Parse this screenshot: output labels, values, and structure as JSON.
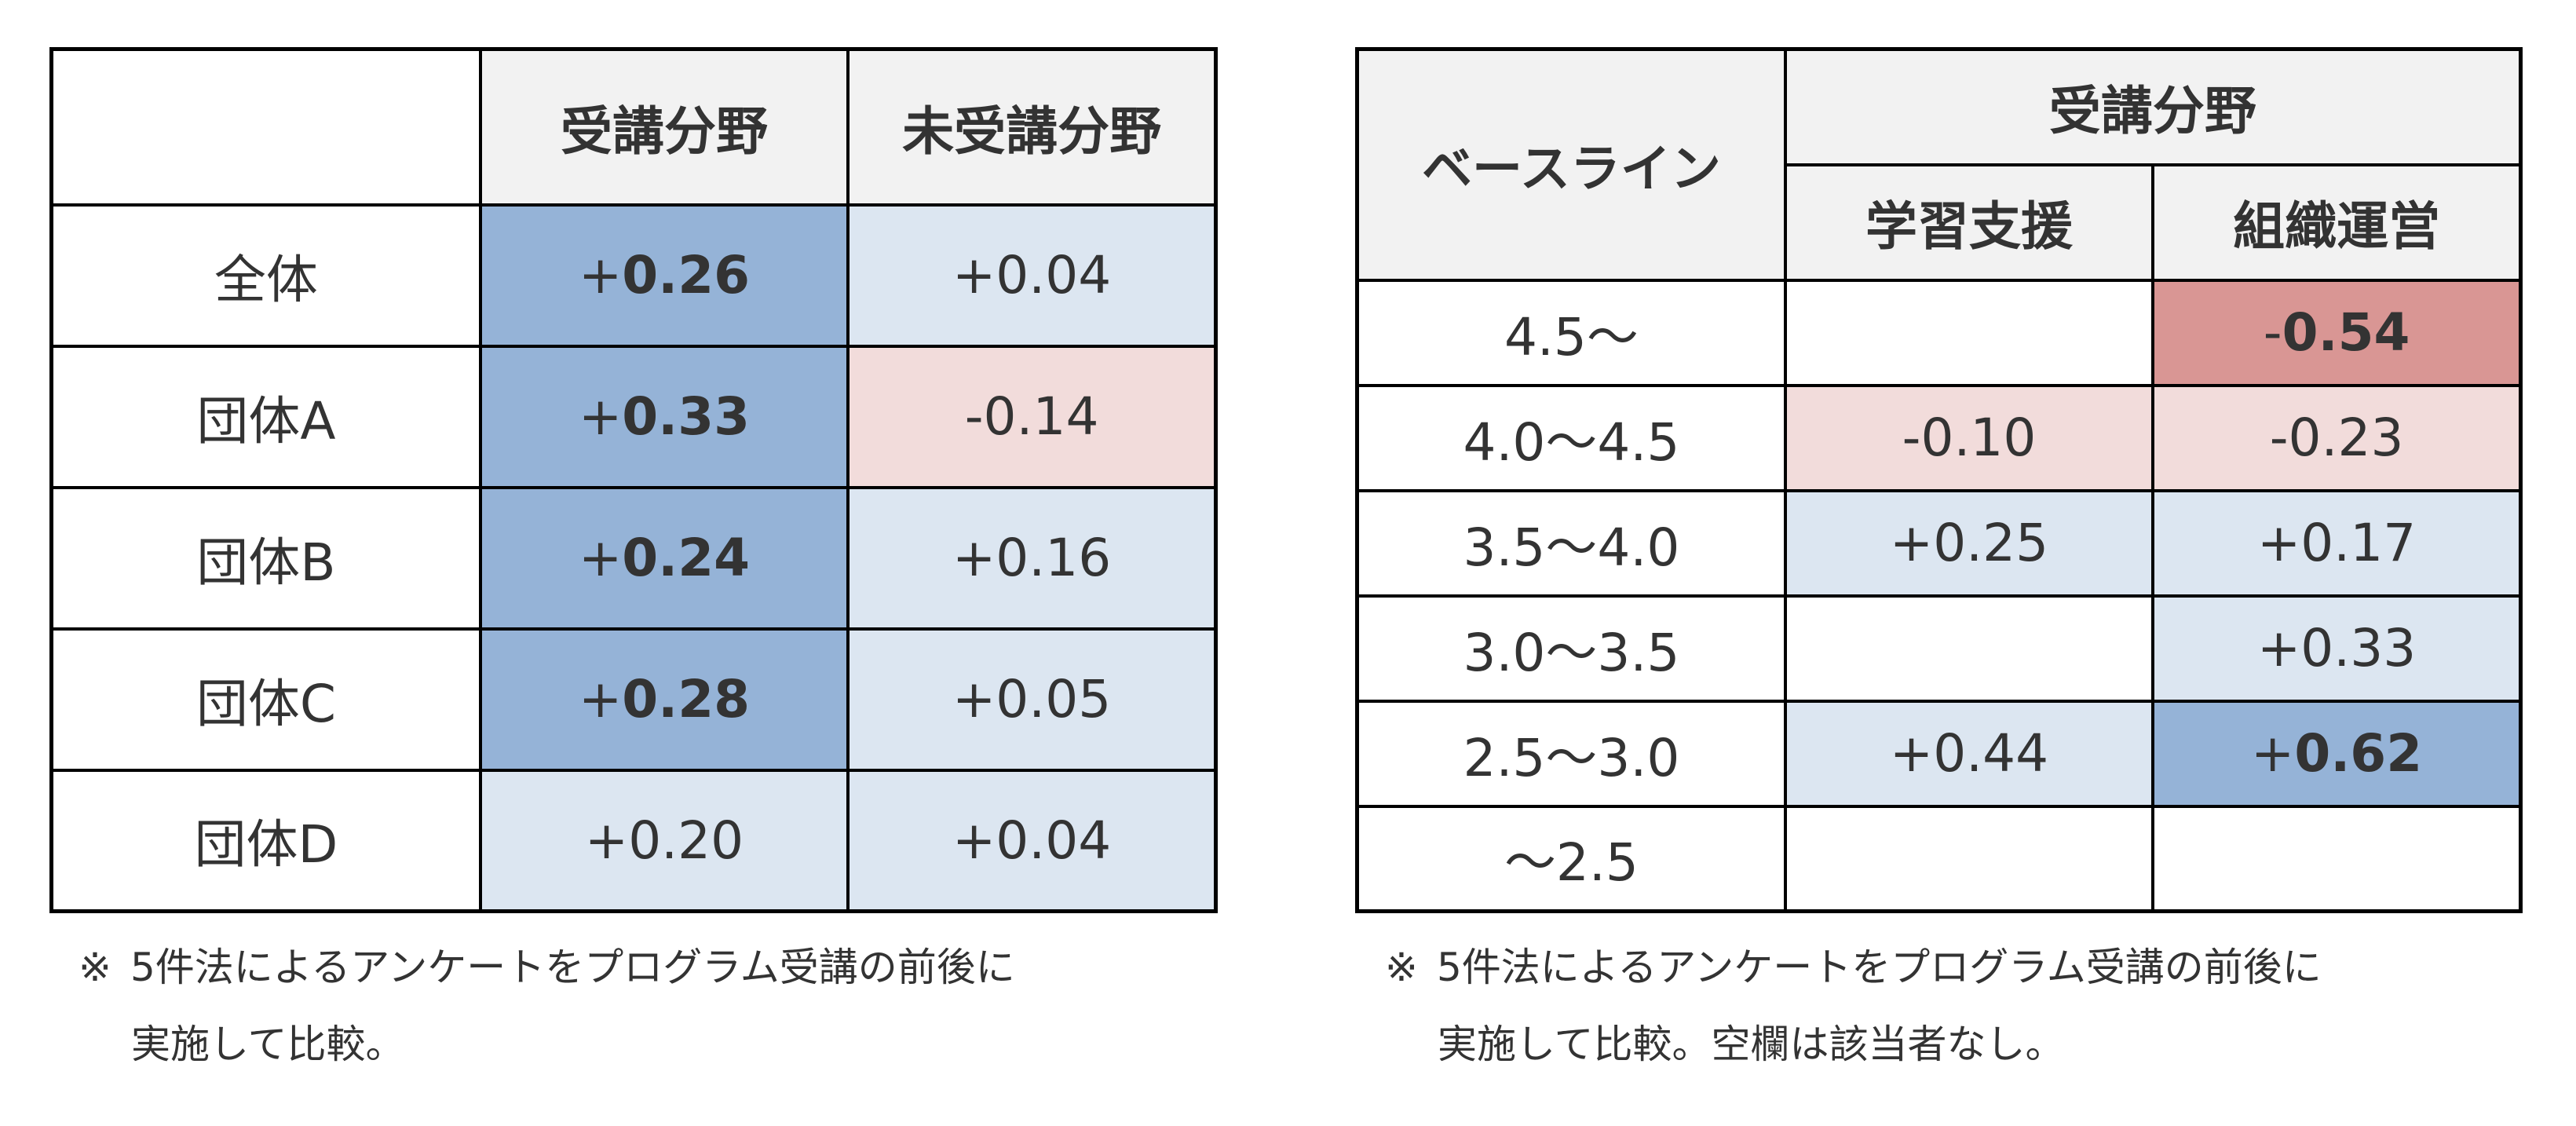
{
  "colors": {
    "header_bg": "#F2F2F2",
    "strong_positive": "#95B3D7",
    "weak_positive": "#DCE6F1",
    "weak_negative": "#F2DCDB",
    "strong_negative": "#D99694",
    "empty": "#FFFFFF",
    "text": "#333333",
    "border": "#000000"
  },
  "left_table": {
    "corner": "",
    "headers": [
      "受講分野",
      "未受講分野"
    ],
    "rows": [
      {
        "label": "全体",
        "cells": [
          {
            "sign": "+",
            "num": "0.26",
            "level": "strong_positive",
            "bold": true
          },
          {
            "sign": "+",
            "num": "0.04",
            "level": "weak_positive",
            "bold": false
          }
        ]
      },
      {
        "label": "団体A",
        "cells": [
          {
            "sign": "+",
            "num": "0.33",
            "level": "strong_positive",
            "bold": true
          },
          {
            "sign": "-",
            "num": "0.14",
            "level": "weak_negative",
            "bold": false
          }
        ]
      },
      {
        "label": "団体B",
        "cells": [
          {
            "sign": "+",
            "num": "0.24",
            "level": "strong_positive",
            "bold": true
          },
          {
            "sign": "+",
            "num": "0.16",
            "level": "weak_positive",
            "bold": false
          }
        ]
      },
      {
        "label": "団体C",
        "cells": [
          {
            "sign": "+",
            "num": "0.28",
            "level": "strong_positive",
            "bold": true
          },
          {
            "sign": "+",
            "num": "0.05",
            "level": "weak_positive",
            "bold": false
          }
        ]
      },
      {
        "label": "団体D",
        "cells": [
          {
            "sign": "+",
            "num": "0.20",
            "level": "weak_positive",
            "bold": false
          },
          {
            "sign": "+",
            "num": "0.04",
            "level": "weak_positive",
            "bold": false
          }
        ]
      }
    ],
    "note": {
      "mark": "※",
      "line1": "5件法によるアンケートをプログラム受講の前後に",
      "line2": "実施して比較。"
    }
  },
  "right_table": {
    "baseline_header": "ベースライン",
    "group_header": "受講分野",
    "sub_headers": [
      "学習支援",
      "組織運営"
    ],
    "rows": [
      {
        "label": "4.5〜",
        "cells": [
          {
            "sign": "",
            "num": "",
            "level": "empty",
            "bold": false
          },
          {
            "sign": "-",
            "num": "0.54",
            "level": "strong_negative",
            "bold": true
          }
        ]
      },
      {
        "label": "4.0〜4.5",
        "cells": [
          {
            "sign": "-",
            "num": "0.10",
            "level": "weak_negative",
            "bold": false
          },
          {
            "sign": "-",
            "num": "0.23",
            "level": "weak_negative",
            "bold": false
          }
        ]
      },
      {
        "label": "3.5〜4.0",
        "cells": [
          {
            "sign": "+",
            "num": "0.25",
            "level": "weak_positive",
            "bold": false
          },
          {
            "sign": "+",
            "num": "0.17",
            "level": "weak_positive",
            "bold": false
          }
        ]
      },
      {
        "label": "3.0〜3.5",
        "cells": [
          {
            "sign": "",
            "num": "",
            "level": "empty",
            "bold": false
          },
          {
            "sign": "+",
            "num": "0.33",
            "level": "weak_positive",
            "bold": false
          }
        ]
      },
      {
        "label": "2.5〜3.0",
        "cells": [
          {
            "sign": "+",
            "num": "0.44",
            "level": "weak_positive",
            "bold": false
          },
          {
            "sign": "+",
            "num": "0.62",
            "level": "strong_positive",
            "bold": true
          }
        ]
      },
      {
        "label": "〜2.5",
        "cells": [
          {
            "sign": "",
            "num": "",
            "level": "empty",
            "bold": false
          },
          {
            "sign": "",
            "num": "",
            "level": "empty",
            "bold": false
          }
        ]
      }
    ],
    "note": {
      "mark": "※",
      "line1": "5件法によるアンケートをプログラム受講の前後に",
      "line2": "実施して比較。空欄は該当者なし。"
    }
  }
}
